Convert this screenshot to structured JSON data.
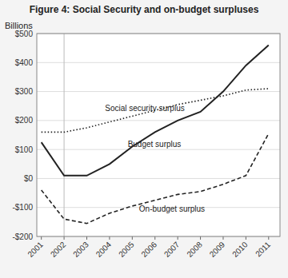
{
  "chart_data": {
    "type": "line",
    "title": "Figure 4: Social Security and on-budget surpluses",
    "ylabel": "Billions",
    "x": [
      2001,
      2002,
      2003,
      2004,
      2005,
      2006,
      2007,
      2008,
      2009,
      2010,
      2011
    ],
    "series": [
      {
        "color": "#222222",
        "line_style": "dotted",
        "values": [
          160,
          160,
          175,
          195,
          215,
          235,
          255,
          270,
          285,
          305,
          310
        ]
      },
      {
        "color": "#222222",
        "line_style": "solid",
        "values": [
          125,
          10,
          10,
          50,
          110,
          160,
          200,
          230,
          300,
          390,
          460
        ]
      },
      {
        "color": "#222222",
        "line_style": "dashed",
        "values": [
          -40,
          -140,
          -155,
          -120,
          -95,
          -75,
          -55,
          -45,
          -20,
          10,
          155
        ]
      }
    ],
    "annotations": [
      {
        "text": "Social security surplus",
        "x": 2003.8,
        "y": 232
      },
      {
        "text": "Budget surplus",
        "x": 2004.8,
        "y": 108
      },
      {
        "text": "On-budget surplus",
        "x": 2005.3,
        "y": -115
      }
    ],
    "reference_lines": [
      {
        "x": 2002
      }
    ],
    "xlim": [
      2000.8,
      2011.5
    ],
    "xticks": [
      2001,
      2002,
      2003,
      2004,
      2005,
      2006,
      2007,
      2008,
      2009,
      2010,
      2011
    ],
    "ylim": [
      -200,
      500
    ],
    "yticks": [
      {
        "value": -200,
        "label": "-$200"
      },
      {
        "value": -100,
        "label": "-$100"
      },
      {
        "value": 0,
        "label": "$0"
      },
      {
        "value": 100,
        "label": "$100"
      },
      {
        "value": 200,
        "label": "$200"
      },
      {
        "value": 300,
        "label": "$300"
      },
      {
        "value": 400,
        "label": "$400"
      },
      {
        "value": 500,
        "label": "$500"
      }
    ],
    "grid": true
  }
}
